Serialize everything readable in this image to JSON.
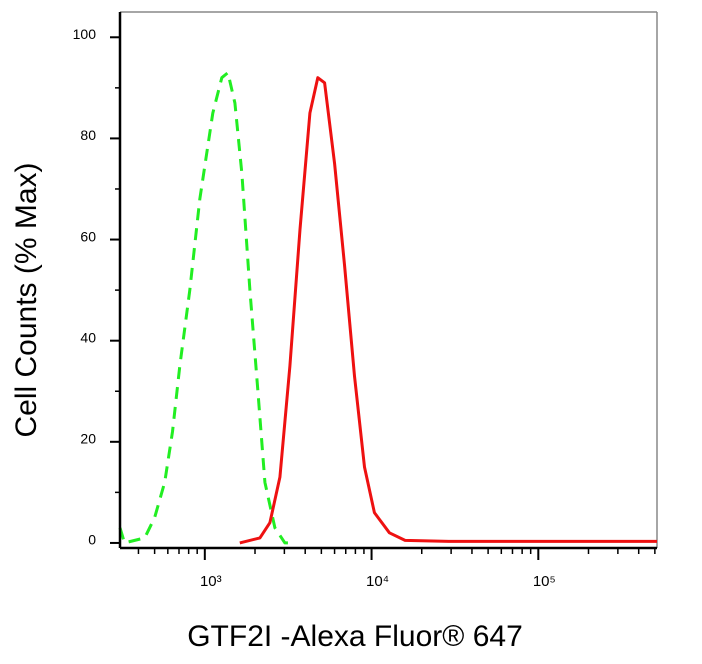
{
  "chart_data": {
    "type": "line",
    "x_label": "GTF2I -Alexa Fluor® 647",
    "y_label": "Cell Counts (% Max)",
    "xscale": "log",
    "xlim": [
      310,
      515000
    ],
    "ylim": [
      -1,
      105
    ],
    "xticks": [
      {
        "value": 1000,
        "label": "10³"
      },
      {
        "value": 10000,
        "label": "10⁴"
      },
      {
        "value": 100000,
        "label": "10⁵"
      }
    ],
    "xminor_ticks": [
      400,
      500,
      600,
      700,
      800,
      900,
      2000,
      3000,
      4000,
      5000,
      6000,
      7000,
      8000,
      9000,
      20000,
      30000,
      40000,
      50000,
      60000,
      70000,
      80000,
      90000,
      200000,
      300000,
      400000,
      500000
    ],
    "yticks": [
      0,
      20,
      40,
      60,
      80,
      100
    ],
    "yminor_ticks": [
      10,
      30,
      50,
      70,
      90
    ],
    "series": [
      {
        "color": "#22ee22",
        "dash": true,
        "x": [
          310,
          330,
          436,
          500,
          575,
          640,
          708,
          813,
          933,
          1117,
          1265,
          1375,
          1515,
          1668,
          1865,
          2081,
          2292,
          2632,
          3020,
          3500
        ],
        "values": [
          3,
          0,
          1,
          5,
          12,
          22,
          35,
          50,
          68,
          85,
          92,
          93,
          87,
          73,
          50,
          30,
          12,
          3,
          0,
          0
        ]
      },
      {
        "color": "#ee1111",
        "dash": false,
        "x": [
          1622,
          2140,
          2456,
          2820,
          3240,
          3720,
          4270,
          4760,
          5230,
          6000,
          6880,
          7900,
          9070,
          10400,
          12800,
          15900,
          29000,
          515000
        ],
        "values": [
          0,
          1,
          4,
          13,
          35,
          62,
          85,
          92,
          91,
          75,
          55,
          33,
          15,
          6,
          2,
          0.5,
          0.3,
          0.3
        ]
      }
    ]
  }
}
